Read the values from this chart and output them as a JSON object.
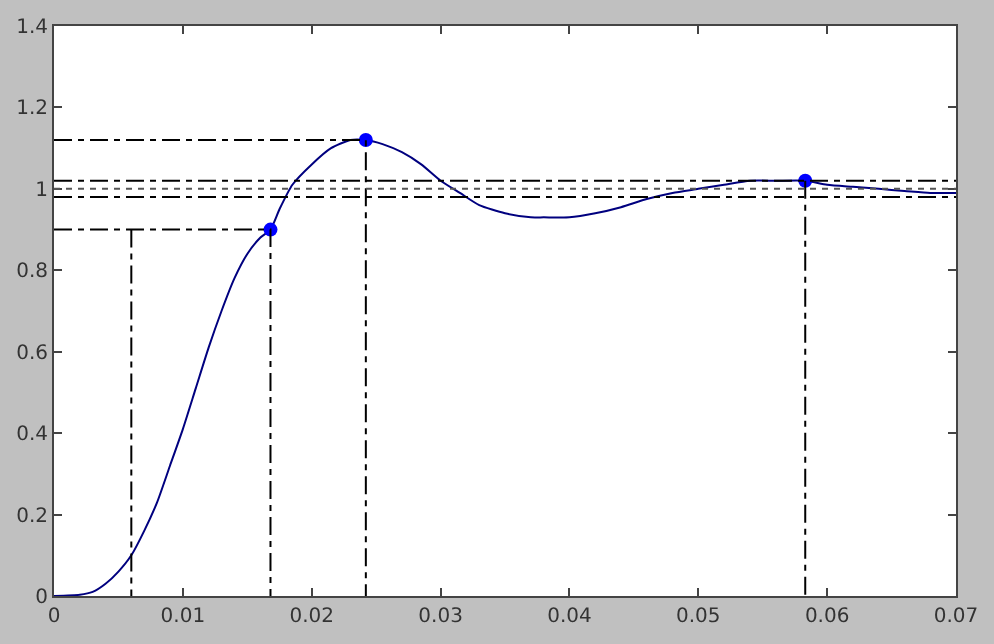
{
  "chart_data": {
    "type": "line",
    "xlim": [
      0,
      0.07
    ],
    "xticks": [
      0,
      0.01,
      0.02,
      0.03,
      0.04,
      0.05,
      0.06,
      0.07
    ],
    "ylim": [
      0,
      1.4
    ],
    "yticks": [
      0,
      0.2,
      0.4,
      0.6,
      0.8,
      1,
      1.2,
      1.4
    ],
    "series": [
      {
        "color": "#00007f",
        "line_style": "solid",
        "marker": "none",
        "x": [
          0,
          0.002,
          0.003,
          0.004,
          0.005,
          0.006,
          0.007,
          0.008,
          0.009,
          0.01,
          0.011,
          0.012,
          0.013,
          0.014,
          0.015,
          0.016,
          0.0168,
          0.0175,
          0.0185,
          0.02,
          0.0215,
          0.023,
          0.0242,
          0.0255,
          0.027,
          0.0285,
          0.03,
          0.0315,
          0.033,
          0.035,
          0.037,
          0.038,
          0.04,
          0.042,
          0.044,
          0.046,
          0.048,
          0.05,
          0.052,
          0.054,
          0.056,
          0.0583,
          0.06,
          0.062,
          0.064,
          0.066,
          0.068,
          0.07
        ],
        "values": [
          0,
          0.003,
          0.01,
          0.03,
          0.06,
          0.1,
          0.16,
          0.23,
          0.32,
          0.41,
          0.51,
          0.61,
          0.7,
          0.78,
          0.84,
          0.88,
          0.9,
          0.95,
          1.01,
          1.06,
          1.1,
          1.12,
          1.12,
          1.11,
          1.09,
          1.06,
          1.02,
          0.99,
          0.96,
          0.94,
          0.93,
          0.93,
          0.93,
          0.94,
          0.955,
          0.975,
          0.99,
          1.0,
          1.01,
          1.02,
          1.02,
          1.02,
          1.01,
          1.005,
          1.0,
          0.995,
          0.99,
          0.99
        ]
      },
      {
        "color": "#0000ff",
        "type": "scatter",
        "marker": "circle",
        "x": [
          0.0168,
          0.0242,
          0.0583
        ],
        "values": [
          0.9,
          1.12,
          1.02
        ]
      },
      {
        "color": "#000000",
        "line_style": "dashed",
        "marker": "none",
        "x": [
          0,
          0.0168,
          0.0168
        ],
        "values": [
          0.9,
          0.9,
          0
        ]
      },
      {
        "color": "#000000",
        "line_style": "dashed",
        "marker": "none",
        "x": [
          0,
          0.0242,
          0.0242
        ],
        "values": [
          1.12,
          1.12,
          0
        ]
      },
      {
        "color": "#000000",
        "line_style": "dashed",
        "marker": "none",
        "x": [
          0.006,
          0.006
        ],
        "values": [
          0.9,
          0
        ]
      },
      {
        "color": "#000000",
        "line_style": "dashed",
        "marker": "none",
        "x": [
          0.0583,
          0.0583
        ],
        "values": [
          1.02,
          0
        ]
      }
    ],
    "ref_lines": [
      {
        "axis": "y",
        "value": 1.02,
        "color": "#000000",
        "line_style": "dashed"
      },
      {
        "axis": "y",
        "value": 0.98,
        "color": "#000000",
        "line_style": "dashed"
      },
      {
        "axis": "y",
        "value": 1,
        "color": "#555555",
        "line_style": "dotted"
      }
    ]
  }
}
